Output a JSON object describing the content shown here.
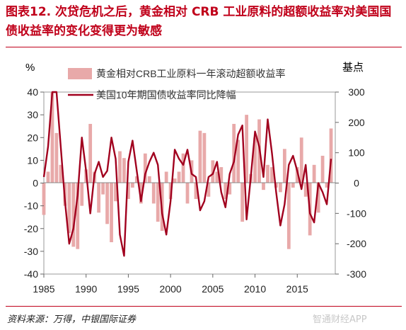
{
  "page": {
    "title": "图表12. 次贷危机之后，黄金相对 CRB 工业原料的超额收益率对美国国债收益率的变化变得更为敏感",
    "source": "资料来源：万得，中银国际证券",
    "watermark": "智通财经APP",
    "colors": {
      "title": "#c0001a",
      "bar": "#e8a9a9",
      "line": "#a1001e"
    }
  },
  "chart_data": {
    "type": "area",
    "left_unit": "%",
    "right_unit": "基点",
    "xlim": [
      1985,
      2019.5
    ],
    "ylim_left": [
      -40,
      40
    ],
    "ylim_right": [
      -300,
      300
    ],
    "x_ticks": [
      "1985",
      "1990",
      "1995",
      "2000",
      "2005",
      "2010",
      "2015"
    ],
    "y_ticks_left": [
      "40",
      "30",
      "20",
      "10",
      "0",
      "-10",
      "-20",
      "-30",
      "-40"
    ],
    "y_ticks_right": [
      "300",
      "200",
      "100",
      "0",
      "-100",
      "-200",
      "-300"
    ],
    "grid": false,
    "legend_position": "top-center",
    "series": [
      {
        "name": "黄金相对CRB工业原料一年滚动超额收益率",
        "axis": "left",
        "style": "bars",
        "x": [
          1985.0,
          1985.5,
          1986.0,
          1986.5,
          1987.0,
          1987.5,
          1988.0,
          1988.5,
          1989.0,
          1989.5,
          1990.0,
          1990.5,
          1991.0,
          1991.5,
          1992.0,
          1992.5,
          1993.0,
          1993.5,
          1994.0,
          1994.5,
          1995.0,
          1995.5,
          1996.0,
          1996.5,
          1997.0,
          1997.5,
          1998.0,
          1998.5,
          1999.0,
          1999.5,
          2000.0,
          2000.5,
          2001.0,
          2001.5,
          2002.0,
          2002.5,
          2003.0,
          2003.5,
          2004.0,
          2004.5,
          2005.0,
          2005.5,
          2006.0,
          2006.5,
          2007.0,
          2007.5,
          2008.0,
          2008.5,
          2009.0,
          2009.5,
          2010.0,
          2010.5,
          2011.0,
          2011.5,
          2012.0,
          2012.5,
          2013.0,
          2013.5,
          2014.0,
          2014.5,
          2015.0,
          2015.5,
          2016.0,
          2016.5,
          2017.0,
          2017.5,
          2018.0,
          2018.5,
          2019.0
        ],
        "values": [
          -14,
          5,
          40,
          22,
          8,
          -10,
          -22,
          -28,
          -29,
          -10,
          6,
          26,
          5,
          -13,
          -5,
          -18,
          -26,
          -8,
          14,
          11,
          -7,
          -2,
          3,
          -9,
          13,
          3,
          -9,
          -17,
          -21,
          5,
          -7,
          2,
          5,
          13,
          -9,
          10,
          -7,
          23,
          22,
          -6,
          10,
          5,
          7,
          -7,
          -5,
          26,
          19,
          -17,
          30,
          4,
          20,
          28,
          -3,
          8,
          7,
          -2,
          -4,
          15,
          -29,
          -2,
          7,
          20,
          -6,
          -23,
          8,
          -13,
          12,
          -2,
          24
        ]
      },
      {
        "name": "美国10年期国债收益率同比降幅",
        "axis": "right",
        "style": "line",
        "x": [
          1985.0,
          1985.5,
          1986.0,
          1986.5,
          1987.0,
          1987.5,
          1988.0,
          1988.5,
          1989.0,
          1989.5,
          1990.0,
          1990.5,
          1991.0,
          1991.5,
          1992.0,
          1992.5,
          1993.0,
          1993.5,
          1994.0,
          1994.5,
          1995.0,
          1995.5,
          1996.0,
          1996.5,
          1997.0,
          1997.5,
          1998.0,
          1998.5,
          1999.0,
          1999.5,
          2000.0,
          2000.5,
          2001.0,
          2001.5,
          2002.0,
          2002.5,
          2003.0,
          2003.5,
          2004.0,
          2004.5,
          2005.0,
          2005.5,
          2006.0,
          2006.5,
          2007.0,
          2007.5,
          2008.0,
          2008.5,
          2009.0,
          2009.5,
          2010.0,
          2010.5,
          2011.0,
          2011.5,
          2012.0,
          2012.5,
          2013.0,
          2013.5,
          2014.0,
          2014.5,
          2015.0,
          2015.5,
          2016.0,
          2016.5,
          2017.0,
          2017.5,
          2018.0,
          2018.5,
          2019.0
        ],
        "values": [
          20,
          120,
          300,
          300,
          120,
          -60,
          -200,
          -150,
          -40,
          150,
          40,
          -100,
          30,
          70,
          20,
          40,
          150,
          80,
          -170,
          -240,
          70,
          140,
          40,
          -60,
          30,
          70,
          100,
          60,
          -100,
          -170,
          -60,
          110,
          80,
          60,
          110,
          30,
          20,
          -90,
          -60,
          20,
          30,
          70,
          -30,
          -80,
          30,
          70,
          160,
          190,
          -120,
          20,
          170,
          120,
          20,
          210,
          100,
          -30,
          -140,
          -70,
          60,
          90,
          40,
          -20,
          60,
          -100,
          -130,
          0,
          -30,
          -70,
          80
        ]
      }
    ]
  }
}
